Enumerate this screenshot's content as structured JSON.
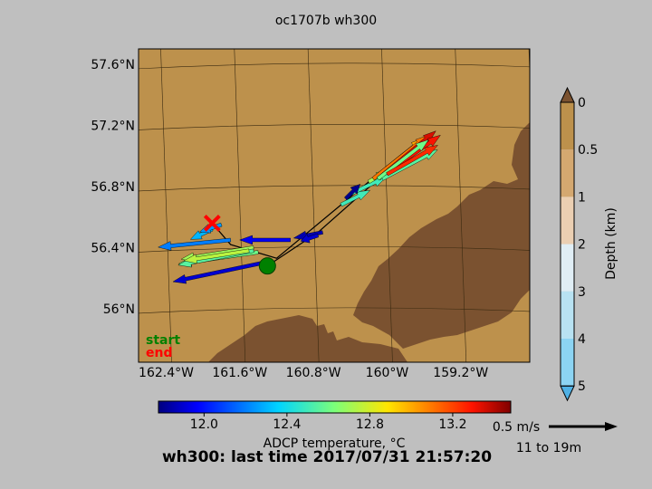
{
  "title": "oc1707b wh300",
  "bottom_title": "wh300: last time 2017/07/31 21:57:20",
  "legend": {
    "start": "start",
    "end": "end",
    "start_color": "#008000",
    "end_color": "#ff0000"
  },
  "colors": {
    "land": "#7b5230",
    "water_shallow": "#bd914c",
    "background": "#bfbfbf"
  },
  "map": {
    "lon_ticks": [
      "162.4°W",
      "161.6°W",
      "160.8°W",
      "160°W",
      "159.2°W"
    ],
    "lat_ticks": [
      "57.6°N",
      "57.2°N",
      "56.8°N",
      "56.4°N",
      "56°N"
    ]
  },
  "depth_colorbar": {
    "label": "Depth (km)",
    "ticks": [
      "0",
      "0.5",
      "1",
      "2",
      "3",
      "4",
      "5"
    ],
    "colors": [
      "#bd914c",
      "#d4a870",
      "#ebcfb2",
      "#e0eef5",
      "#b8e2f2",
      "#8cd4f3",
      "#4fb1e5"
    ],
    "extend_top": "#7b5230",
    "extend_bottom": "#4fb1e5"
  },
  "temp_colorbar": {
    "label": "ADCP temperature, °C",
    "ticks": [
      "12.0",
      "12.4",
      "12.8",
      "13.2"
    ],
    "range": [
      11.78,
      13.48
    ],
    "tick_values": [
      12.0,
      12.4,
      12.8,
      13.2
    ]
  },
  "scale": {
    "label": "0.5 m/s",
    "depth_range": "11 to 19m"
  },
  "chart_data": {
    "type": "scatter",
    "title": "oc1707b wh300",
    "subtitle": "wh300: last time 2017/07/31 21:57:20",
    "xlabel": "",
    "ylabel": "",
    "xlim": [
      -162.7,
      -158.45
    ],
    "ylim": [
      55.65,
      57.7
    ],
    "colorbar_label": "ADCP temperature, °C",
    "start": {
      "lon": -161.3,
      "lat": 56.28
    },
    "end": {
      "lon": -161.9,
      "lat": 56.56
    },
    "track": [
      {
        "lon": -160.75,
        "lat": 56.5
      },
      {
        "lon": -160.15,
        "lat": 56.82
      },
      {
        "lon": -159.82,
        "lat": 57.02
      },
      {
        "lon": -160.3,
        "lat": 56.78
      },
      {
        "lon": -161.2,
        "lat": 56.33
      },
      {
        "lon": -161.7,
        "lat": 56.42
      },
      {
        "lon": -161.9,
        "lat": 56.56
      }
    ],
    "vectors": [
      {
        "lon": -161.35,
        "lat": 56.3,
        "u": -0.62,
        "v": -0.13,
        "temp": 11.9
      },
      {
        "lon": -161.4,
        "lat": 56.37,
        "u": -0.55,
        "v": -0.08,
        "temp": 12.6
      },
      {
        "lon": -161.45,
        "lat": 56.4,
        "u": -0.5,
        "v": -0.08,
        "temp": 12.7
      },
      {
        "lon": -161.45,
        "lat": 56.38,
        "u": -0.52,
        "v": -0.1,
        "temp": 12.55
      },
      {
        "lon": -161.5,
        "lat": 56.38,
        "u": -0.45,
        "v": -0.07,
        "temp": 12.75
      },
      {
        "lon": -161.7,
        "lat": 56.45,
        "u": -0.5,
        "v": -0.05,
        "temp": 12.2
      },
      {
        "lon": -161.9,
        "lat": 56.52,
        "u": -0.15,
        "v": -0.07,
        "temp": 12.3
      },
      {
        "lon": -161.8,
        "lat": 56.55,
        "u": -0.15,
        "v": -0.05,
        "temp": 12.25
      },
      {
        "lon": -161.05,
        "lat": 56.45,
        "u": -0.35,
        "v": 0.0,
        "temp": 11.95
      },
      {
        "lon": -160.7,
        "lat": 56.5,
        "u": -0.2,
        "v": -0.04,
        "temp": 11.85
      },
      {
        "lon": -160.75,
        "lat": 56.48,
        "u": -0.12,
        "v": -0.04,
        "temp": 11.9
      },
      {
        "lon": -160.5,
        "lat": 56.68,
        "u": 0.2,
        "v": 0.1,
        "temp": 12.5
      },
      {
        "lon": -160.4,
        "lat": 56.75,
        "u": 0.25,
        "v": 0.12,
        "temp": 12.5
      },
      {
        "lon": -160.2,
        "lat": 56.83,
        "u": 0.12,
        "v": 0.07,
        "temp": 12.7
      },
      {
        "lon": -160.45,
        "lat": 56.72,
        "u": 0.1,
        "v": 0.1,
        "temp": 11.8
      },
      {
        "lon": -160.15,
        "lat": 56.85,
        "u": 0.35,
        "v": 0.28,
        "temp": 13.0
      },
      {
        "lon": -160.15,
        "lat": 56.85,
        "u": 0.38,
        "v": 0.3,
        "temp": 13.1
      },
      {
        "lon": -160.1,
        "lat": 56.85,
        "u": 0.4,
        "v": 0.33,
        "temp": 13.35
      },
      {
        "lon": -160.05,
        "lat": 56.87,
        "u": 0.4,
        "v": 0.28,
        "temp": 13.3
      },
      {
        "lon": -160.05,
        "lat": 56.85,
        "u": 0.38,
        "v": 0.2,
        "temp": 12.55
      },
      {
        "lon": -160.1,
        "lat": 56.85,
        "u": 0.35,
        "v": 0.27,
        "temp": 12.6
      },
      {
        "lon": -160.0,
        "lat": 56.88,
        "u": 0.35,
        "v": 0.2,
        "temp": 13.25
      }
    ]
  }
}
